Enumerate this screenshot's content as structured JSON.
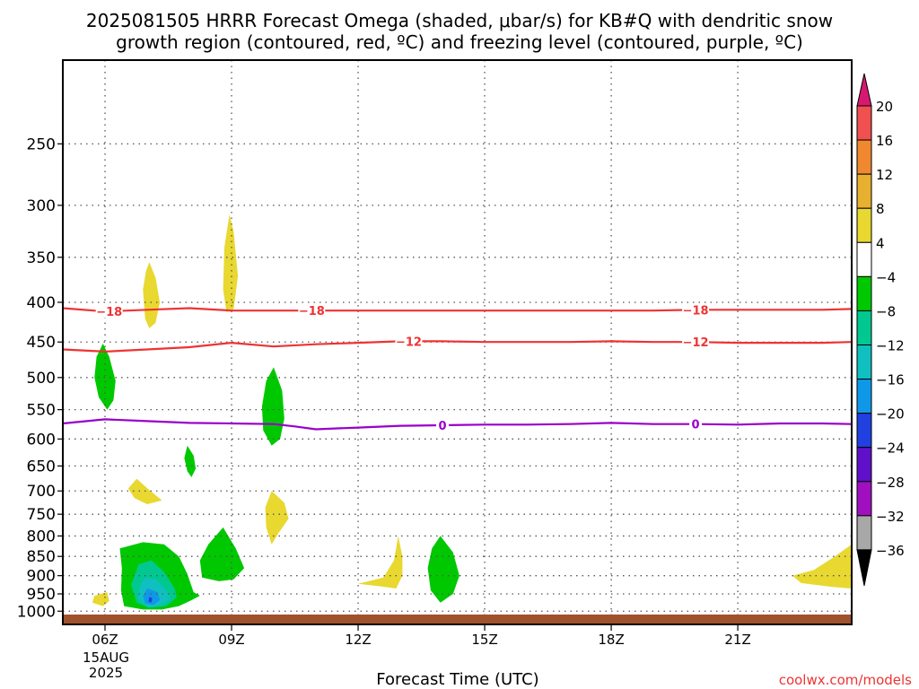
{
  "title_line1": "2025081505 HRRR Forecast Omega (shaded, μbar/s) for KB#Q with dendritic snow",
  "title_line2": "growth region (contoured, red, ºC) and freezing level (contoured, purple, ºC)",
  "xlabel": "Forecast Time (UTC)",
  "watermark": "coolwx.com/models",
  "date_label": [
    "15AUG",
    "2025"
  ],
  "colors": {
    "dgz": "#ee3333",
    "freezing": "#9900cc",
    "ground": "#a0522d",
    "grid": "#555555"
  },
  "chart_data": {
    "type": "heatmap",
    "x_unit": "hours UTC",
    "xlim": [
      5,
      23.7
    ],
    "x_ticks": [
      6,
      9,
      12,
      15,
      18,
      21
    ],
    "x_tick_labels": [
      "06Z",
      "09Z",
      "12Z",
      "15Z",
      "18Z",
      "21Z"
    ],
    "y_unit": "hPa",
    "y_scale": "log",
    "ylim": [
      1040,
      195
    ],
    "y_ticks": [
      250,
      300,
      350,
      400,
      450,
      500,
      550,
      600,
      650,
      700,
      750,
      800,
      850,
      900,
      950,
      1000
    ],
    "grid": true,
    "colorbar": {
      "labels": [
        "20",
        "16",
        "12",
        "8",
        "4",
        "-4",
        "-8",
        "-12",
        "-16",
        "-20",
        "-24",
        "-28",
        "-32",
        "-36"
      ],
      "colors": [
        "#d81870",
        "#f05050",
        "#f08830",
        "#e8b030",
        "#e8d830",
        "#ffffff",
        "#00c800",
        "#00c890",
        "#10c0c0",
        "#1098e8",
        "#2040e0",
        "#6010c8",
        "#a010c0",
        "#a8a8a8",
        "#000000"
      ]
    },
    "omega_regions": [
      {
        "color": "#00c800",
        "pts": [
          [
            5.95,
            452
          ],
          [
            6.1,
            470
          ],
          [
            6.25,
            505
          ],
          [
            6.2,
            535
          ],
          [
            6.05,
            550
          ],
          [
            5.85,
            530
          ],
          [
            5.75,
            500
          ],
          [
            5.8,
            470
          ]
        ]
      },
      {
        "color": "#e8d830",
        "pts": [
          [
            7.05,
            355
          ],
          [
            7.2,
            372
          ],
          [
            7.3,
            400
          ],
          [
            7.2,
            425
          ],
          [
            7.05,
            432
          ],
          [
            6.95,
            420
          ],
          [
            6.9,
            385
          ],
          [
            6.97,
            365
          ]
        ]
      },
      {
        "color": "#e8d830",
        "pts": [
          [
            8.95,
            308
          ],
          [
            9.05,
            325
          ],
          [
            9.15,
            370
          ],
          [
            9.05,
            408
          ],
          [
            8.88,
            412
          ],
          [
            8.8,
            385
          ],
          [
            8.83,
            340
          ]
        ]
      },
      {
        "color": "#00c800",
        "pts": [
          [
            10.0,
            485
          ],
          [
            10.2,
            520
          ],
          [
            10.25,
            565
          ],
          [
            10.15,
            600
          ],
          [
            9.95,
            612
          ],
          [
            9.75,
            585
          ],
          [
            9.72,
            545
          ],
          [
            9.82,
            505
          ]
        ]
      },
      {
        "color": "#00c800",
        "pts": [
          [
            7.95,
            612
          ],
          [
            8.1,
            630
          ],
          [
            8.15,
            655
          ],
          [
            8.05,
            672
          ],
          [
            7.95,
            660
          ],
          [
            7.88,
            635
          ]
        ]
      },
      {
        "color": "#e8d830",
        "pts": [
          [
            6.75,
            675
          ],
          [
            7.05,
            698
          ],
          [
            7.35,
            720
          ],
          [
            7.0,
            728
          ],
          [
            6.7,
            715
          ],
          [
            6.55,
            695
          ]
        ]
      },
      {
        "color": "#e8d830",
        "pts": [
          [
            9.95,
            700
          ],
          [
            10.25,
            725
          ],
          [
            10.35,
            760
          ],
          [
            10.1,
            795
          ],
          [
            9.95,
            820
          ],
          [
            9.82,
            780
          ],
          [
            9.8,
            735
          ]
        ]
      },
      {
        "color": "#e8d830",
        "pts": [
          [
            5.75,
            955
          ],
          [
            6.05,
            945
          ],
          [
            6.1,
            970
          ],
          [
            5.95,
            985
          ],
          [
            5.7,
            975
          ]
        ]
      },
      {
        "color": "#00c800",
        "pts": [
          [
            6.35,
            830
          ],
          [
            6.9,
            815
          ],
          [
            7.4,
            820
          ],
          [
            7.75,
            850
          ],
          [
            7.95,
            895
          ],
          [
            8.1,
            945
          ],
          [
            8.25,
            955
          ],
          [
            8.05,
            968
          ],
          [
            7.75,
            985
          ],
          [
            7.35,
            995
          ],
          [
            6.9,
            995
          ],
          [
            6.45,
            985
          ],
          [
            6.38,
            940
          ],
          [
            6.4,
            880
          ]
        ]
      },
      {
        "color": "#00c890",
        "pts": [
          [
            6.8,
            870
          ],
          [
            7.1,
            860
          ],
          [
            7.4,
            890
          ],
          [
            7.65,
            935
          ],
          [
            7.7,
            960
          ],
          [
            7.45,
            985
          ],
          [
            7.05,
            990
          ],
          [
            6.75,
            975
          ],
          [
            6.62,
            925
          ]
        ]
      },
      {
        "color": "#10c0c0",
        "pts": [
          [
            6.95,
            905
          ],
          [
            7.2,
            910
          ],
          [
            7.45,
            940
          ],
          [
            7.55,
            965
          ],
          [
            7.3,
            985
          ],
          [
            7.0,
            988
          ],
          [
            6.78,
            965
          ],
          [
            6.82,
            930
          ]
        ]
      },
      {
        "color": "#1098e8",
        "pts": [
          [
            7.0,
            935
          ],
          [
            7.25,
            945
          ],
          [
            7.3,
            968
          ],
          [
            7.15,
            982
          ],
          [
            6.95,
            978
          ],
          [
            6.9,
            955
          ]
        ]
      },
      {
        "color": "#2040e0",
        "pts": [
          [
            7.05,
            958
          ],
          [
            7.12,
            962
          ],
          [
            7.1,
            975
          ],
          [
            7.03,
            972
          ]
        ]
      },
      {
        "color": "#00c800",
        "pts": [
          [
            8.8,
            780
          ],
          [
            9.1,
            830
          ],
          [
            9.3,
            880
          ],
          [
            9.05,
            910
          ],
          [
            8.7,
            915
          ],
          [
            8.3,
            905
          ],
          [
            8.25,
            860
          ],
          [
            8.45,
            820
          ]
        ]
      },
      {
        "color": "#e8d830",
        "pts": [
          [
            12.95,
            800
          ],
          [
            13.05,
            850
          ],
          [
            13.05,
            900
          ],
          [
            12.9,
            935
          ],
          [
            12.6,
            930
          ],
          [
            12.0,
            922
          ],
          [
            12.6,
            905
          ],
          [
            12.85,
            860
          ]
        ]
      },
      {
        "color": "#00c800",
        "pts": [
          [
            13.95,
            800
          ],
          [
            14.25,
            840
          ],
          [
            14.4,
            900
          ],
          [
            14.25,
            950
          ],
          [
            13.95,
            975
          ],
          [
            13.72,
            940
          ],
          [
            13.65,
            880
          ],
          [
            13.75,
            830
          ]
        ]
      },
      {
        "color": "#e8d830",
        "pts": [
          [
            23.7,
            820
          ],
          [
            23.7,
            935
          ],
          [
            23.2,
            930
          ],
          [
            22.5,
            920
          ],
          [
            22.3,
            900
          ],
          [
            22.8,
            885
          ],
          [
            23.3,
            850
          ]
        ]
      }
    ],
    "contours": [
      {
        "name": "-18",
        "color": "#ee3333",
        "x": [
          5,
          6,
          7,
          8,
          9,
          10,
          11,
          12,
          13,
          14,
          15,
          16,
          17,
          18,
          19,
          20,
          21,
          22,
          23,
          23.7
        ],
        "y": [
          407,
          411,
          409,
          407,
          410,
          410,
          410,
          410,
          410,
          410,
          410,
          410,
          410,
          410,
          410,
          409,
          409,
          409,
          409,
          408
        ],
        "labels": [
          6.1,
          10.9,
          20
        ]
      },
      {
        "name": "-12",
        "color": "#ee3333",
        "x": [
          5,
          6,
          7,
          8,
          9,
          10,
          11,
          12,
          13,
          14,
          15,
          16,
          17,
          18,
          19,
          20,
          21,
          22,
          23,
          23.7
        ],
        "y": [
          460,
          463,
          460,
          457,
          451,
          456,
          453,
          451,
          449,
          449,
          450,
          450,
          450,
          449,
          450,
          450,
          451,
          451,
          451,
          450
        ],
        "labels": [
          13.2,
          20
        ]
      },
      {
        "name": "0",
        "color": "#9900cc",
        "x": [
          5,
          6,
          7,
          8,
          9,
          10,
          10.5,
          11,
          12,
          13,
          14,
          15,
          16,
          17,
          18,
          19,
          20,
          21,
          22,
          23,
          23.7
        ],
        "y": [
          573,
          566,
          569,
          572,
          573,
          574,
          578,
          583,
          580,
          577,
          576,
          575,
          575,
          574,
          572,
          574,
          574,
          575,
          573,
          573,
          574
        ],
        "labels": [
          14,
          20
        ]
      }
    ],
    "ground": {
      "top": 1010,
      "bottom": 1040
    }
  }
}
